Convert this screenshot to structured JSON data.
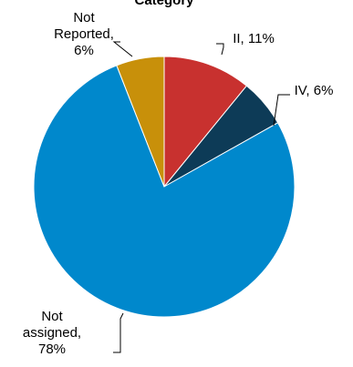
{
  "chart_data": {
    "type": "pie",
    "title": "Category",
    "series": [
      {
        "name": "",
        "slices": [
          {
            "label": "II",
            "value": 11,
            "percent_label": "11%",
            "color": "#c8312f",
            "label_lines": [
              "II, 11%"
            ]
          },
          {
            "label": "IV",
            "value": 6,
            "percent_label": "6%",
            "color": "#0d3b57",
            "label_lines": [
              "IV, 6%"
            ]
          },
          {
            "label": "Not assigned",
            "value": 78,
            "percent_label": "78%",
            "color": "#0088cc",
            "label_lines": [
              "Not",
              "assigned,",
              "78%"
            ]
          },
          {
            "label": "Not Reported",
            "value": 6,
            "percent_label": "6%",
            "color": "#c8900a",
            "label_lines": [
              "Not",
              "Reported,",
              "6%"
            ]
          }
        ]
      }
    ],
    "start_angle": "12 o'clock",
    "direction": "clockwise",
    "legend": "none"
  }
}
